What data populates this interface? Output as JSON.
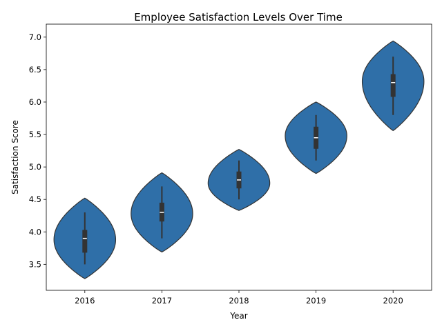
{
  "chart_data": {
    "type": "violin",
    "title": "Employee Satisfaction Levels Over Time",
    "xlabel": "Year",
    "ylabel": "Satisfaction Score",
    "categories": [
      "2016",
      "2017",
      "2018",
      "2019",
      "2020"
    ],
    "ylim": [
      3.1,
      7.2
    ],
    "yticks": [
      "3.5",
      "4.0",
      "4.5",
      "5.0",
      "5.5",
      "6.0",
      "6.5",
      "7.0"
    ],
    "grid": false,
    "colors": {
      "violin_fill": "#2f6fa8",
      "violin_edge": "#333333",
      "box": "#333333",
      "median": "#ffffff"
    },
    "violins": [
      {
        "year": "2016",
        "range": [
          3.28,
          4.52
        ],
        "peak": 3.88,
        "median": 3.9,
        "q1": 3.68,
        "q3": 4.03,
        "whisker": [
          3.5,
          4.3
        ]
      },
      {
        "year": "2017",
        "range": [
          3.69,
          4.91
        ],
        "peak": 4.28,
        "median": 4.3,
        "q1": 4.16,
        "q3": 4.45,
        "whisker": [
          3.9,
          4.7
        ]
      },
      {
        "year": "2018",
        "range": [
          4.33,
          5.27
        ],
        "peak": 4.75,
        "median": 4.8,
        "q1": 4.67,
        "q3": 4.93,
        "whisker": [
          4.5,
          5.1
        ]
      },
      {
        "year": "2019",
        "range": [
          4.9,
          6.0
        ],
        "peak": 5.48,
        "median": 5.45,
        "q1": 5.28,
        "q3": 5.62,
        "whisker": [
          5.1,
          5.8
        ]
      },
      {
        "year": "2020",
        "range": [
          5.56,
          6.94
        ],
        "peak": 6.32,
        "median": 6.3,
        "q1": 6.08,
        "q3": 6.43,
        "whisker": [
          5.8,
          6.7
        ]
      }
    ]
  }
}
